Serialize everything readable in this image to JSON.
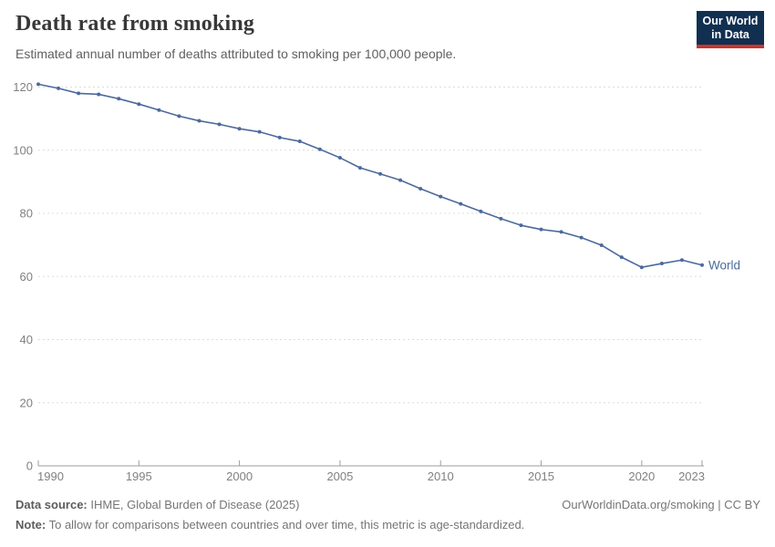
{
  "header": {
    "title": "Death rate from smoking",
    "subtitle": "Estimated annual number of deaths attributed to smoking per 100,000 people.",
    "logo": {
      "line1": "Our World",
      "line2": "in Data",
      "bg_color": "#112f51",
      "accent_color": "#c9352b"
    }
  },
  "colors": {
    "line": "#4c6a9c",
    "grid": "#dcdcdc",
    "axis": "#9e9e9e",
    "tick_label": "#808080"
  },
  "chart_data": {
    "type": "line",
    "title": "Death rate from smoking",
    "xlabel": "",
    "ylabel": "",
    "x": [
      1990,
      1991,
      1992,
      1993,
      1994,
      1995,
      1996,
      1997,
      1998,
      1999,
      2000,
      2001,
      2002,
      2003,
      2004,
      2005,
      2006,
      2007,
      2008,
      2009,
      2010,
      2011,
      2012,
      2013,
      2014,
      2015,
      2016,
      2017,
      2018,
      2019,
      2020,
      2021,
      2022,
      2023
    ],
    "series": [
      {
        "name": "World",
        "color": "#4c6a9c",
        "values": [
          120.9,
          119.6,
          118.0,
          117.7,
          116.3,
          114.6,
          112.7,
          110.8,
          109.3,
          108.2,
          106.8,
          105.8,
          104.0,
          102.8,
          100.3,
          97.6,
          94.4,
          92.5,
          90.5,
          87.8,
          85.3,
          83.0,
          80.6,
          78.3,
          76.2,
          74.9,
          74.1,
          72.3,
          69.9,
          66.1,
          62.9,
          64.1,
          65.2,
          63.6
        ]
      }
    ],
    "ylim": [
      0,
      120
    ],
    "yticks": [
      0,
      20,
      40,
      60,
      80,
      100,
      120
    ],
    "xticks": [
      1990,
      1995,
      2000,
      2005,
      2010,
      2015,
      2020,
      2023
    ],
    "grid": "horizontal-dashed",
    "legend": "end-of-line-label",
    "end_label": "World"
  },
  "footer": {
    "datasource_label": "Data source:",
    "datasource_value": " IHME, Global Burden of Disease (2025)",
    "link": "OurWorldinData.org/smoking | CC BY",
    "note_label": "Note:",
    "note_value": " To allow for comparisons between countries and over time, this metric is age-standardized."
  }
}
